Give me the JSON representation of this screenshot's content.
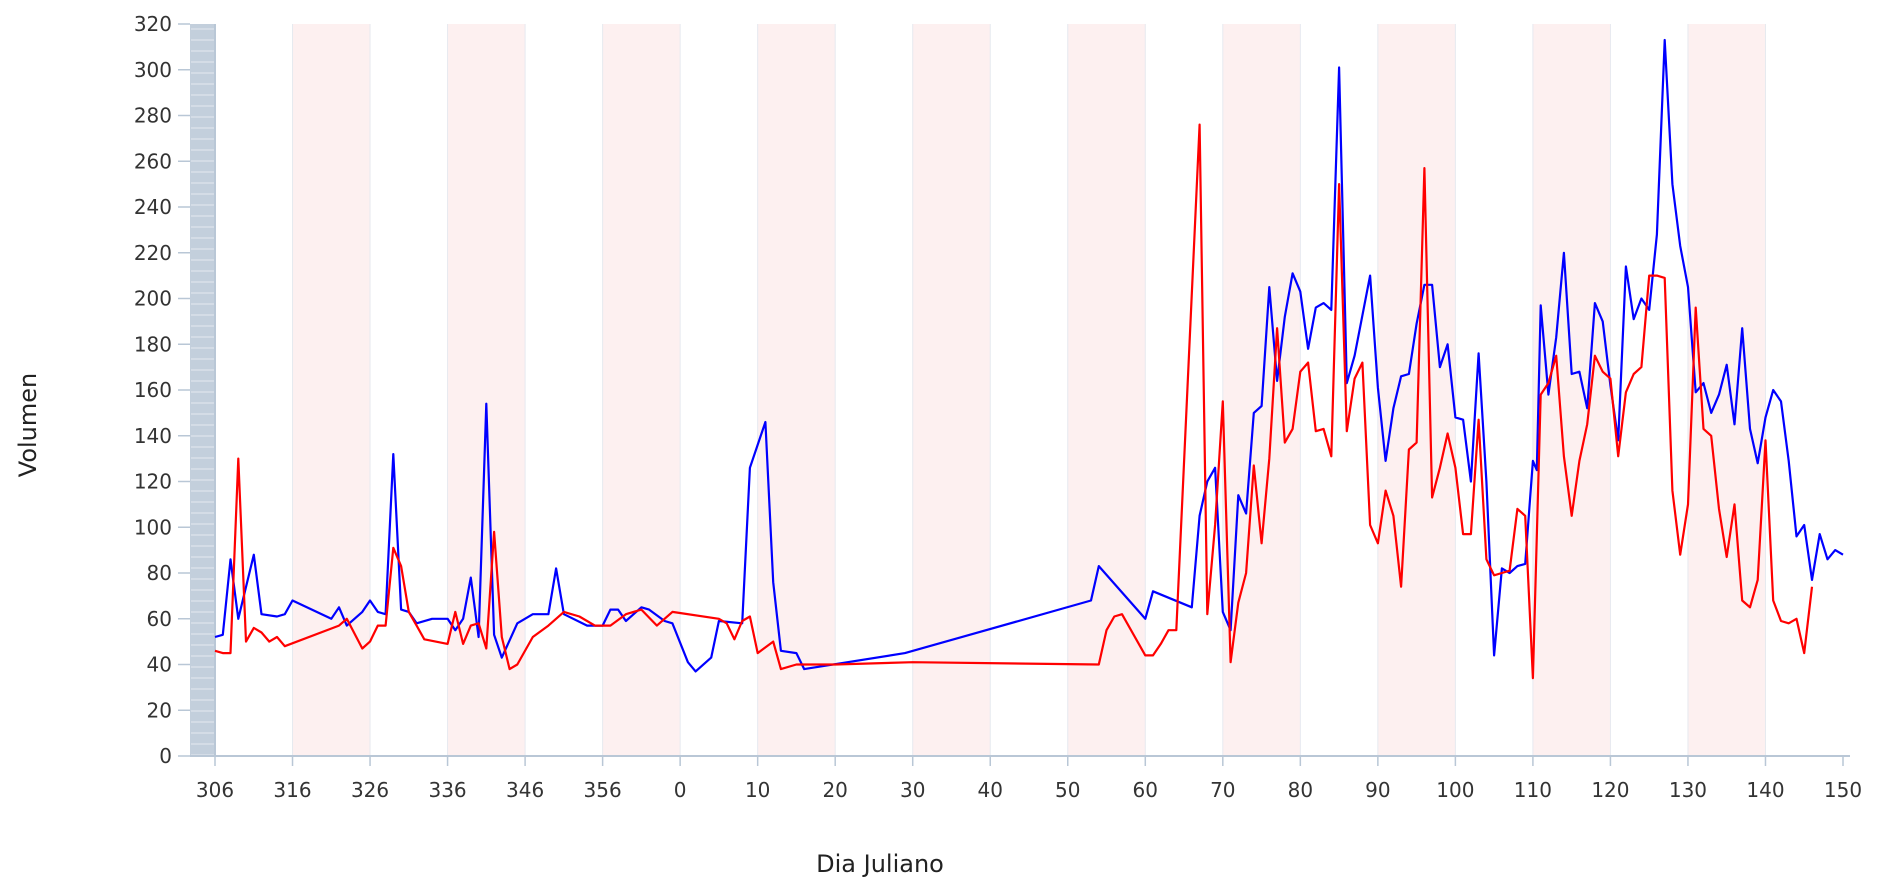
{
  "chart_data": {
    "type": "line",
    "title": "",
    "xlabel": "Dia Juliano",
    "ylabel": "Volumen",
    "ylim": [
      0,
      320
    ],
    "y_ticks": [
      0,
      20,
      40,
      60,
      80,
      100,
      120,
      140,
      160,
      180,
      200,
      220,
      240,
      260,
      280,
      300,
      320
    ],
    "x_tick_labels": [
      "306",
      "316",
      "326",
      "336",
      "346",
      "356",
      "0",
      "10",
      "20",
      "30",
      "40",
      "50",
      "60",
      "70",
      "80",
      "90",
      "100",
      "110",
      "120",
      "130",
      "140",
      "150"
    ],
    "grid": "vertical bands",
    "colors": {
      "band": "#fdf0f0",
      "band_border": "#e6e9ef",
      "axis": "#b9c7d6",
      "sidebar": "#c3cfdc"
    },
    "series": [
      {
        "color": "#0000ff",
        "points": [
          [
            "306",
            52
          ],
          [
            "307",
            53
          ],
          [
            "308",
            86
          ],
          [
            "309",
            60
          ],
          [
            "311",
            88
          ],
          [
            "312",
            62
          ],
          [
            "314",
            61
          ],
          [
            "315",
            62
          ],
          [
            "316",
            68
          ],
          [
            "321",
            60
          ],
          [
            "322",
            65
          ],
          [
            "323",
            57
          ],
          [
            "325",
            63
          ],
          [
            "326",
            68
          ],
          [
            "327",
            63
          ],
          [
            "328",
            62
          ],
          [
            "329",
            132
          ],
          [
            "330",
            64
          ],
          [
            "331",
            63
          ],
          [
            "332",
            58
          ],
          [
            "334",
            60
          ],
          [
            "336",
            60
          ],
          [
            "337",
            55
          ],
          [
            "338",
            60
          ],
          [
            "339",
            78
          ],
          [
            "340",
            52
          ],
          [
            "341",
            154
          ],
          [
            "342",
            53
          ],
          [
            "343",
            43
          ],
          [
            "345",
            58
          ],
          [
            "347",
            62
          ],
          [
            "349",
            62
          ],
          [
            "350",
            82
          ],
          [
            "351",
            62
          ],
          [
            "354",
            57
          ],
          [
            "356",
            57
          ],
          [
            "357",
            64
          ],
          [
            "358",
            64
          ],
          [
            "359",
            59
          ],
          [
            "361",
            65
          ],
          [
            "362",
            64
          ],
          [
            "364",
            59
          ],
          [
            "365",
            58
          ],
          [
            "1",
            41
          ],
          [
            "2",
            37
          ],
          [
            "4",
            43
          ],
          [
            "5",
            59
          ],
          [
            "8",
            58
          ],
          [
            "9",
            126
          ],
          [
            "11",
            146
          ],
          [
            "12",
            76
          ],
          [
            "13",
            46
          ],
          [
            "15",
            45
          ],
          [
            "16",
            38
          ],
          [
            "29",
            45
          ],
          [
            "53",
            68
          ],
          [
            "54",
            83
          ],
          [
            "60",
            60
          ],
          [
            "61",
            72
          ],
          [
            "66",
            65
          ],
          [
            "67",
            105
          ],
          [
            "68",
            120
          ],
          [
            "69",
            126
          ],
          [
            "70",
            63
          ],
          [
            "71",
            55
          ],
          [
            "72",
            114
          ],
          [
            "73",
            106
          ],
          [
            "74",
            150
          ],
          [
            "75",
            153
          ],
          [
            "76",
            205
          ],
          [
            "77",
            164
          ],
          [
            "78",
            192
          ],
          [
            "79",
            211
          ],
          [
            "80",
            203
          ],
          [
            "81",
            178
          ],
          [
            "82",
            196
          ],
          [
            "83",
            198
          ],
          [
            "84",
            195
          ],
          [
            "85",
            301
          ],
          [
            "86",
            163
          ],
          [
            "87",
            175
          ],
          [
            "89",
            210
          ],
          [
            "90",
            161
          ],
          [
            "91",
            129
          ],
          [
            "92",
            152
          ],
          [
            "93",
            166
          ],
          [
            "94",
            167
          ],
          [
            "95",
            189
          ],
          [
            "96",
            206
          ],
          [
            "97",
            206
          ],
          [
            "98",
            170
          ],
          [
            "99",
            180
          ],
          [
            "100",
            148
          ],
          [
            "101",
            147
          ],
          [
            "102",
            120
          ],
          [
            "103",
            176
          ],
          [
            "104",
            120
          ],
          [
            "105",
            44
          ],
          [
            "106",
            82
          ],
          [
            "107",
            80
          ],
          [
            "108",
            83
          ],
          [
            "109",
            84
          ],
          [
            "110",
            129
          ],
          [
            "110.5",
            125
          ],
          [
            "111",
            197
          ],
          [
            "112",
            158
          ],
          [
            "113",
            183
          ],
          [
            "114",
            220
          ],
          [
            "115",
            167
          ],
          [
            "116",
            168
          ],
          [
            "117",
            152
          ],
          [
            "118",
            198
          ],
          [
            "119",
            190
          ],
          [
            "120",
            162
          ],
          [
            "121",
            138
          ],
          [
            "122",
            214
          ],
          [
            "123",
            191
          ],
          [
            "124",
            200
          ],
          [
            "125",
            195
          ],
          [
            "126",
            228
          ],
          [
            "127",
            313
          ],
          [
            "128",
            250
          ],
          [
            "129",
            223
          ],
          [
            "130",
            205
          ],
          [
            "131",
            159
          ],
          [
            "132",
            163
          ],
          [
            "133",
            150
          ],
          [
            "134",
            158
          ],
          [
            "135",
            171
          ],
          [
            "136",
            145
          ],
          [
            "137",
            187
          ],
          [
            "138",
            143
          ],
          [
            "139",
            128
          ],
          [
            "140",
            148
          ],
          [
            "141",
            160
          ],
          [
            "142",
            155
          ],
          [
            "143",
            129
          ],
          [
            "144",
            96
          ],
          [
            "145",
            101
          ],
          [
            "146",
            77
          ],
          [
            "147",
            97
          ],
          [
            "148",
            86
          ],
          [
            "149",
            90
          ],
          [
            "150",
            88
          ]
        ]
      },
      {
        "color": "#ff0000",
        "points": [
          [
            "306",
            46
          ],
          [
            "307",
            45
          ],
          [
            "308",
            45
          ],
          [
            "309",
            130
          ],
          [
            "310",
            50
          ],
          [
            "311",
            56
          ],
          [
            "312",
            54
          ],
          [
            "313",
            50
          ],
          [
            "314",
            52
          ],
          [
            "315",
            48
          ],
          [
            "322",
            57
          ],
          [
            "323",
            60
          ],
          [
            "325",
            47
          ],
          [
            "326",
            50
          ],
          [
            "327",
            57
          ],
          [
            "328",
            57
          ],
          [
            "329",
            91
          ],
          [
            "330",
            83
          ],
          [
            "331",
            63
          ],
          [
            "332",
            57
          ],
          [
            "333",
            51
          ],
          [
            "336",
            49
          ],
          [
            "337",
            63
          ],
          [
            "338",
            49
          ],
          [
            "339",
            57
          ],
          [
            "340",
            58
          ],
          [
            "341",
            47
          ],
          [
            "342",
            98
          ],
          [
            "343",
            52
          ],
          [
            "344",
            38
          ],
          [
            "345",
            40
          ],
          [
            "347",
            52
          ],
          [
            "349",
            57
          ],
          [
            "351",
            63
          ],
          [
            "353",
            61
          ],
          [
            "355",
            57
          ],
          [
            "357",
            57
          ],
          [
            "359",
            62
          ],
          [
            "361",
            64
          ],
          [
            "363",
            57
          ],
          [
            "365",
            63
          ],
          [
            "5",
            60
          ],
          [
            "6",
            58
          ],
          [
            "7",
            51
          ],
          [
            "8",
            59
          ],
          [
            "9",
            61
          ],
          [
            "10",
            45
          ],
          [
            "12",
            50
          ],
          [
            "13",
            38
          ],
          [
            "15",
            40
          ],
          [
            "20",
            40
          ],
          [
            "30",
            41
          ],
          [
            "54",
            40
          ],
          [
            "55",
            55
          ],
          [
            "56",
            61
          ],
          [
            "57",
            62
          ],
          [
            "60",
            44
          ],
          [
            "61",
            44
          ],
          [
            "62",
            49
          ],
          [
            "63",
            55
          ],
          [
            "64",
            55
          ],
          [
            "67",
            276
          ],
          [
            "68",
            62
          ],
          [
            "69",
            101
          ],
          [
            "70",
            155
          ],
          [
            "71",
            41
          ],
          [
            "72",
            67
          ],
          [
            "73",
            80
          ],
          [
            "74",
            127
          ],
          [
            "75",
            93
          ],
          [
            "76",
            130
          ],
          [
            "77",
            187
          ],
          [
            "78",
            137
          ],
          [
            "79",
            143
          ],
          [
            "80",
            168
          ],
          [
            "81",
            172
          ],
          [
            "82",
            142
          ],
          [
            "83",
            143
          ],
          [
            "84",
            131
          ],
          [
            "85",
            250
          ],
          [
            "86",
            142
          ],
          [
            "87",
            165
          ],
          [
            "88",
            172
          ],
          [
            "89",
            101
          ],
          [
            "90",
            93
          ],
          [
            "91",
            116
          ],
          [
            "92",
            105
          ],
          [
            "93",
            74
          ],
          [
            "94",
            134
          ],
          [
            "95",
            137
          ],
          [
            "96",
            257
          ],
          [
            "97",
            113
          ],
          [
            "98",
            126
          ],
          [
            "99",
            141
          ],
          [
            "100",
            126
          ],
          [
            "101",
            97
          ],
          [
            "102",
            97
          ],
          [
            "103",
            147
          ],
          [
            "104",
            86
          ],
          [
            "105",
            79
          ],
          [
            "106",
            80
          ],
          [
            "107",
            81
          ],
          [
            "108",
            108
          ],
          [
            "109",
            105
          ],
          [
            "110",
            34
          ],
          [
            "111",
            158
          ],
          [
            "112",
            163
          ],
          [
            "113",
            175
          ],
          [
            "114",
            131
          ],
          [
            "115",
            105
          ],
          [
            "116",
            129
          ],
          [
            "117",
            145
          ],
          [
            "118",
            175
          ],
          [
            "119",
            168
          ],
          [
            "120",
            165
          ],
          [
            "121",
            131
          ],
          [
            "122",
            159
          ],
          [
            "123",
            167
          ],
          [
            "124",
            170
          ],
          [
            "125",
            210
          ],
          [
            "126",
            210
          ],
          [
            "127",
            209
          ],
          [
            "128",
            116
          ],
          [
            "129",
            88
          ],
          [
            "130",
            110
          ],
          [
            "131",
            196
          ],
          [
            "132",
            143
          ],
          [
            "133",
            140
          ],
          [
            "134",
            108
          ],
          [
            "135",
            87
          ],
          [
            "136",
            110
          ],
          [
            "137",
            68
          ],
          [
            "138",
            65
          ],
          [
            "139",
            77
          ],
          [
            "140",
            138
          ],
          [
            "141",
            68
          ],
          [
            "142",
            59
          ],
          [
            "143",
            58
          ],
          [
            "144",
            60
          ],
          [
            "145",
            45
          ],
          [
            "146",
            74
          ]
        ]
      }
    ]
  }
}
